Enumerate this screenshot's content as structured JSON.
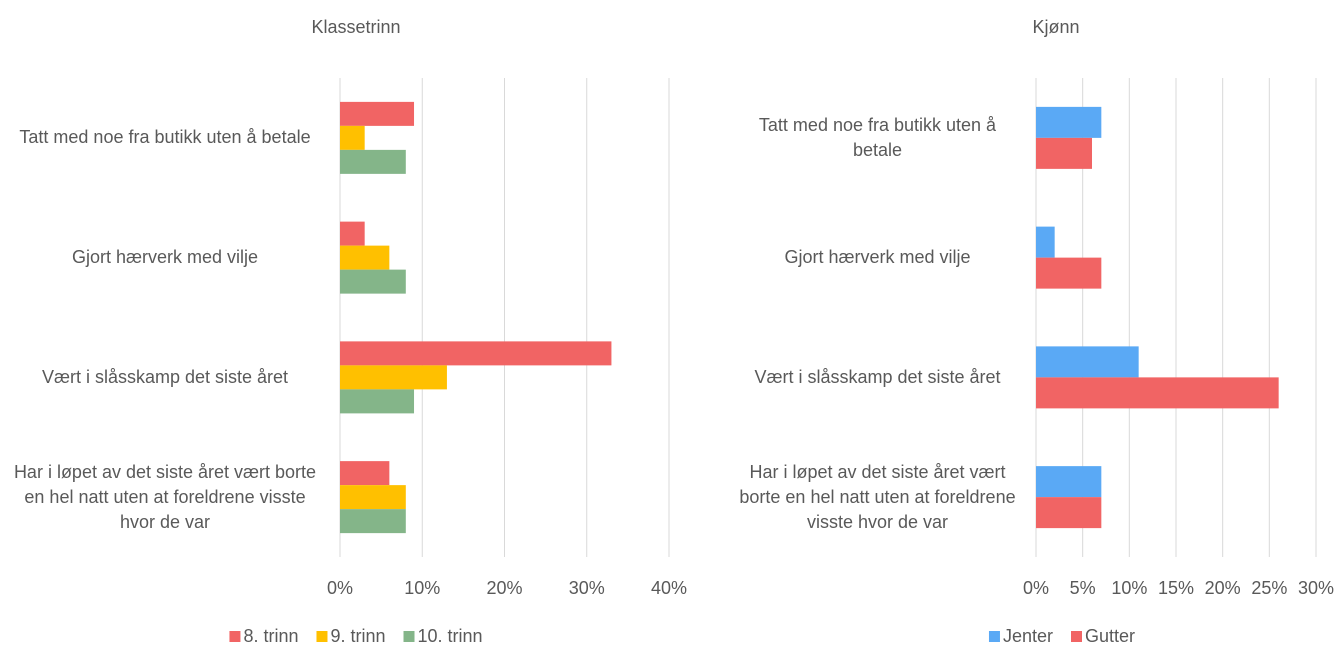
{
  "chart_data": [
    {
      "type": "bar",
      "orientation": "horizontal",
      "title": "Klassetrinn",
      "categories": [
        "Tatt med noe fra butikk uten å betale",
        "Gjort hærverk med vilje",
        "Vært i slåsskamp det siste året",
        "Har i løpet av det siste året vært borte en hel natt uten at foreldrene visste hvor de var"
      ],
      "series": [
        {
          "name": "8. trinn",
          "color": "#f16464",
          "values": [
            9,
            3,
            33,
            6
          ]
        },
        {
          "name": "9. trinn",
          "color": "#ffc000",
          "values": [
            3,
            6,
            13,
            8
          ]
        },
        {
          "name": "10. trinn",
          "color": "#84b589",
          "values": [
            8,
            8,
            9,
            8
          ]
        }
      ],
      "xlim": [
        0,
        40
      ],
      "xticks": [
        {
          "value": 0,
          "label": "0%"
        },
        {
          "value": 10,
          "label": "10%"
        },
        {
          "value": 20,
          "label": "20%"
        },
        {
          "value": 30,
          "label": "30%"
        },
        {
          "value": 40,
          "label": "40%"
        }
      ],
      "grid": true,
      "legend": "bottom"
    },
    {
      "type": "bar",
      "orientation": "horizontal",
      "title": "Kjønn",
      "categories": [
        "Tatt med noe fra butikk uten å betale",
        "Gjort hærverk med vilje",
        "Vært i slåsskamp det siste året",
        "Har i løpet av det siste året  vært borte en hel natt uten at foreldrene visste hvor de var"
      ],
      "series": [
        {
          "name": "Jenter",
          "color": "#5aa9f5",
          "values": [
            7,
            2,
            11,
            7
          ]
        },
        {
          "name": "Gutter",
          "color": "#f16464",
          "values": [
            6,
            7,
            26,
            7
          ]
        }
      ],
      "xlim": [
        0,
        30
      ],
      "xticks": [
        {
          "value": 0,
          "label": "0%"
        },
        {
          "value": 5,
          "label": "5%"
        },
        {
          "value": 10,
          "label": "10%"
        },
        {
          "value": 15,
          "label": "15%"
        },
        {
          "value": 20,
          "label": "20%"
        },
        {
          "value": 25,
          "label": "25%"
        },
        {
          "value": 30,
          "label": "30%"
        }
      ],
      "grid": true,
      "legend": "bottom"
    }
  ]
}
